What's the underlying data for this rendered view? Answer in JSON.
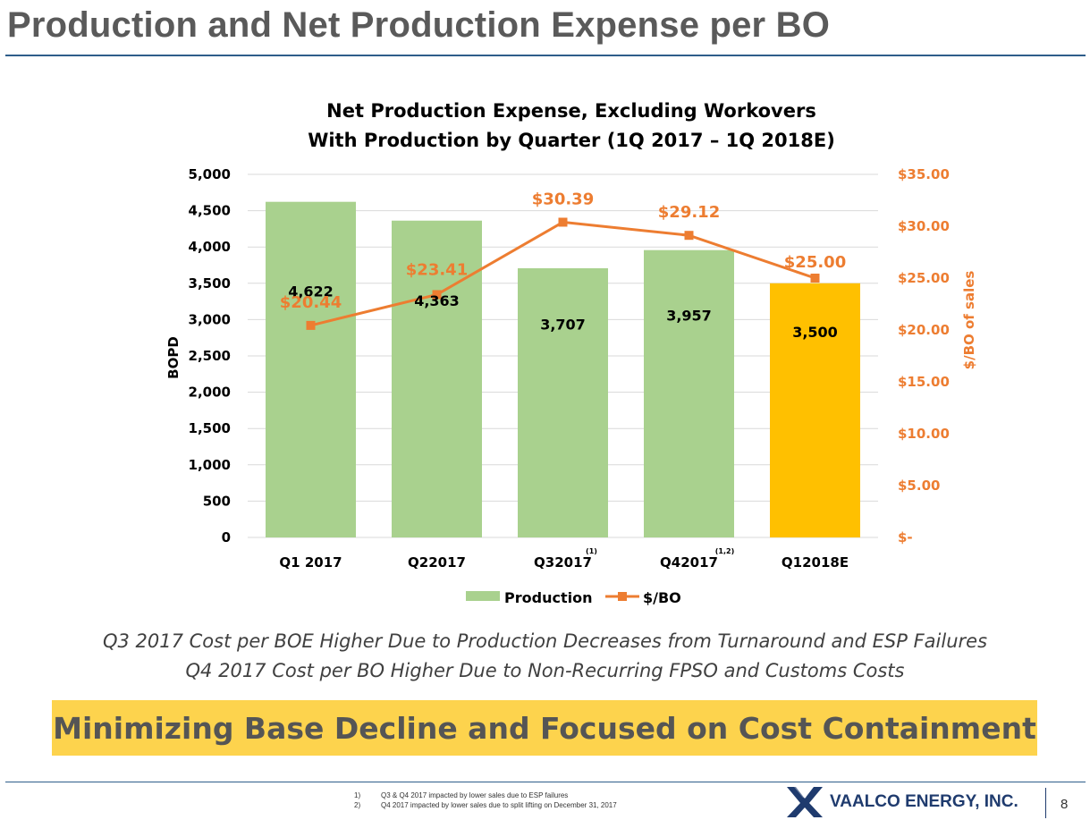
{
  "slide": {
    "title": "Production and Net Production Expense per BO",
    "subtitle_line1": "Q3 2017 Cost per BOE Higher Due to Production Decreases from Turnaround and ESP Failures",
    "subtitle_line2": "Q4 2017 Cost per BO Higher Due to Non-Recurring FPSO and Customs Costs",
    "banner": "Minimizing Base Decline and Focused on Cost Containment",
    "footnotes": [
      {
        "num": "1)",
        "text": "Q3 & Q4 2017 impacted by lower sales due to ESP failures"
      },
      {
        "num": "2)",
        "text": "Q4 2017 impacted by lower sales due to split lifting on December 31, 2017"
      }
    ],
    "company": "VAALCO ENERGY, INC.",
    "page_number": "8"
  },
  "chart_data": {
    "type": "bar",
    "title_lines": [
      "Net Production Expense, Excluding Workovers",
      "With Production by Quarter (1Q 2017 – 1Q 2018E)"
    ],
    "categories": [
      "Q1 2017",
      "Q22017",
      "Q32017",
      "Q42017",
      "Q12018E"
    ],
    "category_superscripts": [
      "",
      "",
      "(1)",
      "(1,2)",
      ""
    ],
    "series": [
      {
        "name": "Production",
        "type": "bar",
        "axis": "left",
        "values": [
          4622,
          4363,
          3707,
          3957,
          3500
        ],
        "labels": [
          "4,622",
          "4,363",
          "3,707",
          "3,957",
          "3,500"
        ]
      },
      {
        "name": "$/BO",
        "type": "line",
        "axis": "right",
        "values": [
          20.44,
          23.41,
          30.39,
          29.12,
          25.0
        ],
        "labels": [
          "$20.44",
          "$23.41",
          "$30.39",
          "$29.12",
          "$25.00"
        ]
      }
    ],
    "ylabel": "BOPD",
    "y2label": "$/BO of sales",
    "ylim": [
      0,
      5000
    ],
    "y2lim": [
      0,
      35
    ],
    "y_ticks": [
      0,
      500,
      1000,
      1500,
      2000,
      2500,
      3000,
      3500,
      4000,
      4500,
      5000
    ],
    "y_tick_labels": [
      "0",
      "500",
      "1,000",
      "1,500",
      "2,000",
      "2,500",
      "3,000",
      "3,500",
      "4,000",
      "4,500",
      "5,000"
    ],
    "y2_ticks": [
      0,
      5,
      10,
      15,
      20,
      25,
      30,
      35
    ],
    "y2_tick_labels": [
      "$-",
      "$5.00",
      "$10.00",
      "$15.00",
      "$20.00",
      "$25.00",
      "$30.00",
      "$35.00"
    ],
    "legend": [
      "Production",
      "$/BO"
    ],
    "legend_position": "bottom",
    "gridlines": true,
    "colors": {
      "bar": "#a9d18e",
      "bar_highlight": "#ffc000",
      "line": "#ed7d31",
      "grid": "#d9d9d9"
    }
  }
}
